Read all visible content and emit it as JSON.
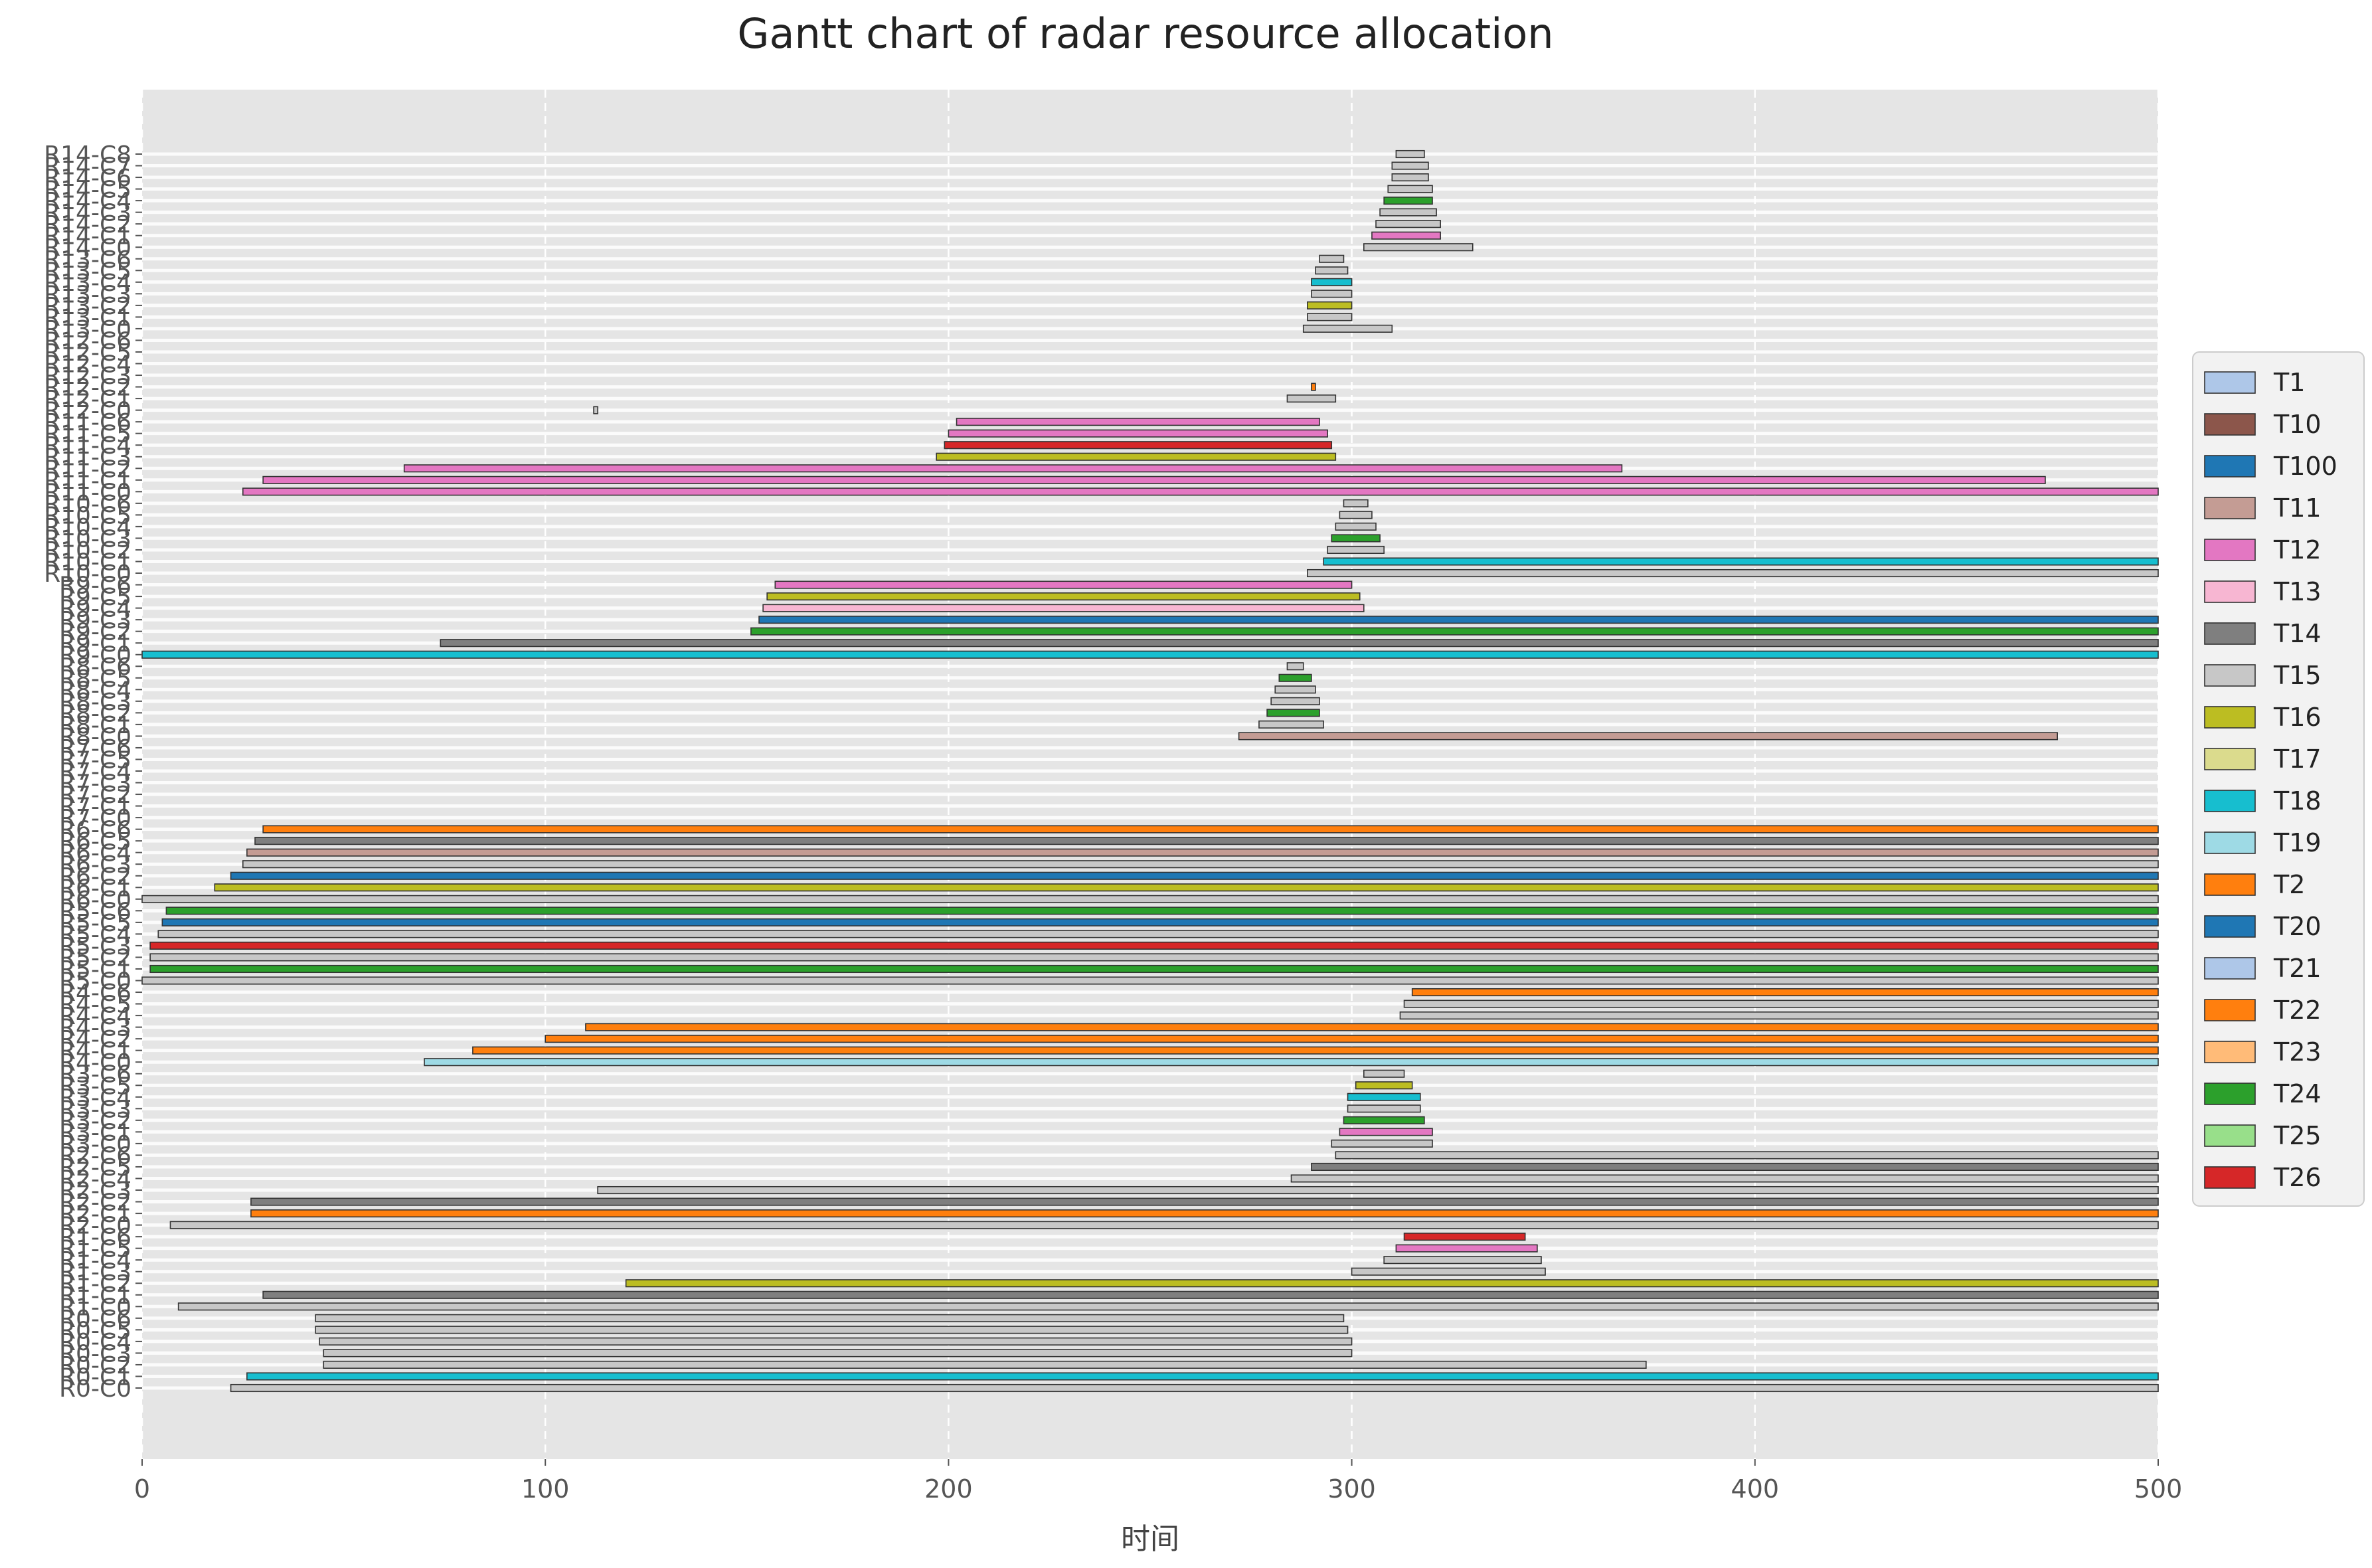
{
  "chart_data": {
    "type": "gantt",
    "title": "Gantt chart of radar resource allocation",
    "xlabel": "时间",
    "ylabel": "",
    "xlim": [
      0,
      500
    ],
    "xticks": [
      0,
      100,
      200,
      300,
      400,
      500
    ],
    "grid": true,
    "legend_placement": "right",
    "rows": [
      "R0-C0",
      "R0-C1",
      "R0-C2",
      "R0-C3",
      "R0-C4",
      "R0-C5",
      "R0-C6",
      "R1-C0",
      "R1-C1",
      "R1-C2",
      "R1-C3",
      "R1-C4",
      "R1-C5",
      "R1-C6",
      "R2-C0",
      "R2-C1",
      "R2-C2",
      "R2-C3",
      "R2-C4",
      "R2-C5",
      "R2-C6",
      "R3-C0",
      "R3-C1",
      "R3-C2",
      "R3-C3",
      "R3-C4",
      "R3-C5",
      "R3-C6",
      "R4-C0",
      "R4-C1",
      "R4-C2",
      "R4-C3",
      "R4-C4",
      "R4-C5",
      "R4-C6",
      "R5-C0",
      "R5-C1",
      "R5-C2",
      "R5-C3",
      "R5-C4",
      "R5-C5",
      "R5-C6",
      "R6-C0",
      "R6-C1",
      "R6-C2",
      "R6-C3",
      "R6-C4",
      "R6-C5",
      "R6-C6",
      "R7-C0",
      "R7-C1",
      "R7-C2",
      "R7-C3",
      "R7-C4",
      "R7-C5",
      "R7-C6",
      "R8-C0",
      "R8-C1",
      "R8-C2",
      "R8-C3",
      "R8-C4",
      "R8-C5",
      "R8-C6",
      "R9-C0",
      "R9-C1",
      "R9-C2",
      "R9-C3",
      "R9-C4",
      "R9-C5",
      "R9-C6",
      "R10-C0",
      "R10-C1",
      "R10-C2",
      "R10-C3",
      "R10-C4",
      "R10-C5",
      "R10-C6",
      "R11-C0",
      "R11-C1",
      "R11-C2",
      "R11-C3",
      "R11-C4",
      "R11-C5",
      "R11-C6",
      "R12-C0",
      "R12-C1",
      "R12-C2",
      "R12-C3",
      "R12-C4",
      "R12-C5",
      "R12-C6",
      "R13-C0",
      "R13-C1",
      "R13-C2",
      "R13-C3",
      "R13-C4",
      "R13-C5",
      "R13-C6",
      "R14-C0",
      "R14-C1",
      "R14-C2",
      "R14-C3",
      "R14-C4",
      "R14-C5",
      "R14-C6",
      "R14-C7",
      "R14-C8"
    ],
    "legend": [
      {
        "name": "T1",
        "color": "#aec7e8"
      },
      {
        "name": "T10",
        "color": "#8c564b"
      },
      {
        "name": "T100",
        "color": "#1f77b4"
      },
      {
        "name": "T11",
        "color": "#c49c94"
      },
      {
        "name": "T12",
        "color": "#e377c2"
      },
      {
        "name": "T13",
        "color": "#f7b6d2"
      },
      {
        "name": "T14",
        "color": "#7f7f7f"
      },
      {
        "name": "T15",
        "color": "#c7c7c7"
      },
      {
        "name": "T16",
        "color": "#bcbd22"
      },
      {
        "name": "T17",
        "color": "#dbdb8d"
      },
      {
        "name": "T18",
        "color": "#17becf"
      },
      {
        "name": "T19",
        "color": "#9edae5"
      },
      {
        "name": "T2",
        "color": "#ff7f0e"
      },
      {
        "name": "T20",
        "color": "#1f77b4"
      },
      {
        "name": "T21",
        "color": "#aec7e8"
      },
      {
        "name": "T22",
        "color": "#ff7f0e"
      },
      {
        "name": "T23",
        "color": "#ffbb78"
      },
      {
        "name": "T24",
        "color": "#2ca02c"
      },
      {
        "name": "T25",
        "color": "#98df8a"
      },
      {
        "name": "T26",
        "color": "#d62728"
      }
    ],
    "segments": [
      {
        "row": "R0-C0",
        "start": 22,
        "end": 500,
        "task": "T15"
      },
      {
        "row": "R0-C1",
        "start": 26,
        "end": 500,
        "task": "T18"
      },
      {
        "row": "R0-C2",
        "start": 45,
        "end": 373,
        "task": "T15"
      },
      {
        "row": "R0-C3",
        "start": 45,
        "end": 300,
        "task": "T15"
      },
      {
        "row": "R0-C4",
        "start": 44,
        "end": 300,
        "task": "T15"
      },
      {
        "row": "R0-C5",
        "start": 43,
        "end": 299,
        "task": "T15"
      },
      {
        "row": "R0-C6",
        "start": 43,
        "end": 298,
        "task": "T15"
      },
      {
        "row": "R1-C0",
        "start": 9,
        "end": 500,
        "task": "T15"
      },
      {
        "row": "R1-C1",
        "start": 30,
        "end": 500,
        "task": "T14"
      },
      {
        "row": "R1-C2",
        "start": 120,
        "end": 500,
        "task": "T16"
      },
      {
        "row": "R1-C3",
        "start": 300,
        "end": 348,
        "task": "T15"
      },
      {
        "row": "R1-C4",
        "start": 308,
        "end": 347,
        "task": "T15"
      },
      {
        "row": "R1-C5",
        "start": 311,
        "end": 346,
        "task": "T12"
      },
      {
        "row": "R1-C6",
        "start": 313,
        "end": 343,
        "task": "T26"
      },
      {
        "row": "R2-C0",
        "start": 7,
        "end": 500,
        "task": "T15"
      },
      {
        "row": "R2-C1",
        "start": 27,
        "end": 500,
        "task": "T2"
      },
      {
        "row": "R2-C2",
        "start": 27,
        "end": 500,
        "task": "T14"
      },
      {
        "row": "R2-C3",
        "start": 113,
        "end": 500,
        "task": "T15"
      },
      {
        "row": "R2-C4",
        "start": 285,
        "end": 500,
        "task": "T15"
      },
      {
        "row": "R2-C5",
        "start": 290,
        "end": 500,
        "task": "T14"
      },
      {
        "row": "R2-C6",
        "start": 296,
        "end": 500,
        "task": "T15"
      },
      {
        "row": "R3-C0",
        "start": 295,
        "end": 320,
        "task": "T15"
      },
      {
        "row": "R3-C1",
        "start": 297,
        "end": 320,
        "task": "T12"
      },
      {
        "row": "R3-C2",
        "start": 298,
        "end": 318,
        "task": "T24"
      },
      {
        "row": "R3-C3",
        "start": 299,
        "end": 317,
        "task": "T15"
      },
      {
        "row": "R3-C4",
        "start": 299,
        "end": 317,
        "task": "T18"
      },
      {
        "row": "R3-C5",
        "start": 301,
        "end": 315,
        "task": "T16"
      },
      {
        "row": "R3-C6",
        "start": 303,
        "end": 313,
        "task": "T15"
      },
      {
        "row": "R4-C0",
        "start": 70,
        "end": 500,
        "task": "T19"
      },
      {
        "row": "R4-C1",
        "start": 82,
        "end": 500,
        "task": "T22"
      },
      {
        "row": "R4-C2",
        "start": 100,
        "end": 500,
        "task": "T2"
      },
      {
        "row": "R4-C3",
        "start": 110,
        "end": 500,
        "task": "T22"
      },
      {
        "row": "R4-C4",
        "start": 312,
        "end": 500,
        "task": "T15"
      },
      {
        "row": "R4-C5",
        "start": 313,
        "end": 500,
        "task": "T15"
      },
      {
        "row": "R4-C6",
        "start": 315,
        "end": 500,
        "task": "T22"
      },
      {
        "row": "R5-C0",
        "start": 0,
        "end": 500,
        "task": "T15"
      },
      {
        "row": "R5-C1",
        "start": 2,
        "end": 500,
        "task": "T24"
      },
      {
        "row": "R5-C2",
        "start": 2,
        "end": 500,
        "task": "T15"
      },
      {
        "row": "R5-C3",
        "start": 2,
        "end": 500,
        "task": "T26"
      },
      {
        "row": "R5-C4",
        "start": 4,
        "end": 500,
        "task": "T15"
      },
      {
        "row": "R5-C5",
        "start": 5,
        "end": 500,
        "task": "T20"
      },
      {
        "row": "R5-C6",
        "start": 6,
        "end": 500,
        "task": "T24"
      },
      {
        "row": "R6-C0",
        "start": 0,
        "end": 500,
        "task": "T15"
      },
      {
        "row": "R6-C1",
        "start": 18,
        "end": 500,
        "task": "T16"
      },
      {
        "row": "R6-C2",
        "start": 22,
        "end": 500,
        "task": "T20"
      },
      {
        "row": "R6-C3",
        "start": 25,
        "end": 500,
        "task": "T15"
      },
      {
        "row": "R6-C4",
        "start": 26,
        "end": 500,
        "task": "T11"
      },
      {
        "row": "R6-C5",
        "start": 28,
        "end": 500,
        "task": "T14"
      },
      {
        "row": "R6-C6",
        "start": 30,
        "end": 500,
        "task": "T22"
      },
      {
        "row": "R8-C0",
        "start": 272,
        "end": 475,
        "task": "T11"
      },
      {
        "row": "R8-C1",
        "start": 277,
        "end": 293,
        "task": "T15"
      },
      {
        "row": "R8-C2",
        "start": 279,
        "end": 292,
        "task": "T24"
      },
      {
        "row": "R8-C3",
        "start": 280,
        "end": 292,
        "task": "T15"
      },
      {
        "row": "R8-C4",
        "start": 281,
        "end": 291,
        "task": "T15"
      },
      {
        "row": "R8-C5",
        "start": 282,
        "end": 290,
        "task": "T24"
      },
      {
        "row": "R8-C6",
        "start": 284,
        "end": 288,
        "task": "T15"
      },
      {
        "row": "R9-C0",
        "start": 0,
        "end": 500,
        "task": "T18"
      },
      {
        "row": "R9-C1",
        "start": 74,
        "end": 500,
        "task": "T14"
      },
      {
        "row": "R9-C2",
        "start": 151,
        "end": 500,
        "task": "T24"
      },
      {
        "row": "R9-C3",
        "start": 153,
        "end": 500,
        "task": "T20"
      },
      {
        "row": "R9-C4",
        "start": 154,
        "end": 303,
        "task": "T13"
      },
      {
        "row": "R9-C5",
        "start": 155,
        "end": 302,
        "task": "T16"
      },
      {
        "row": "R9-C6",
        "start": 157,
        "end": 300,
        "task": "T12"
      },
      {
        "row": "R10-C0",
        "start": 289,
        "end": 500,
        "task": "T15"
      },
      {
        "row": "R10-C1",
        "start": 293,
        "end": 500,
        "task": "T18"
      },
      {
        "row": "R10-C2",
        "start": 294,
        "end": 308,
        "task": "T15"
      },
      {
        "row": "R10-C3",
        "start": 295,
        "end": 307,
        "task": "T24"
      },
      {
        "row": "R10-C4",
        "start": 296,
        "end": 306,
        "task": "T15"
      },
      {
        "row": "R10-C5",
        "start": 297,
        "end": 305,
        "task": "T15"
      },
      {
        "row": "R10-C6",
        "start": 298,
        "end": 304,
        "task": "T15"
      },
      {
        "row": "R11-C0",
        "start": 25,
        "end": 500,
        "task": "T12"
      },
      {
        "row": "R11-C1",
        "start": 30,
        "end": 472,
        "task": "T12"
      },
      {
        "row": "R11-C2",
        "start": 65,
        "end": 367,
        "task": "T12"
      },
      {
        "row": "R11-C3",
        "start": 197,
        "end": 296,
        "task": "T16"
      },
      {
        "row": "R11-C4",
        "start": 199,
        "end": 295,
        "task": "T26"
      },
      {
        "row": "R11-C5",
        "start": 200,
        "end": 294,
        "task": "T12"
      },
      {
        "row": "R11-C6",
        "start": 202,
        "end": 292,
        "task": "T12"
      },
      {
        "row": "R12-C0",
        "start": 112,
        "end": 113,
        "task": "T15"
      },
      {
        "row": "R12-C1",
        "start": 284,
        "end": 296,
        "task": "T15"
      },
      {
        "row": "R12-C2",
        "start": 290,
        "end": 291,
        "task": "T22"
      },
      {
        "row": "R13-C0",
        "start": 288,
        "end": 310,
        "task": "T15"
      },
      {
        "row": "R13-C1",
        "start": 289,
        "end": 300,
        "task": "T15"
      },
      {
        "row": "R13-C2",
        "start": 289,
        "end": 300,
        "task": "T16"
      },
      {
        "row": "R13-C3",
        "start": 290,
        "end": 300,
        "task": "T15"
      },
      {
        "row": "R13-C4",
        "start": 290,
        "end": 300,
        "task": "T18"
      },
      {
        "row": "R13-C5",
        "start": 291,
        "end": 299,
        "task": "T15"
      },
      {
        "row": "R13-C6",
        "start": 292,
        "end": 298,
        "task": "T15"
      },
      {
        "row": "R14-C0",
        "start": 303,
        "end": 330,
        "task": "T15"
      },
      {
        "row": "R14-C1",
        "start": 305,
        "end": 322,
        "task": "T12"
      },
      {
        "row": "R14-C2",
        "start": 306,
        "end": 322,
        "task": "T15"
      },
      {
        "row": "R14-C3",
        "start": 307,
        "end": 321,
        "task": "T15"
      },
      {
        "row": "R14-C4",
        "start": 308,
        "end": 320,
        "task": "T24"
      },
      {
        "row": "R14-C5",
        "start": 309,
        "end": 320,
        "task": "T15"
      },
      {
        "row": "R14-C6",
        "start": 310,
        "end": 319,
        "task": "T15"
      },
      {
        "row": "R14-C7",
        "start": 310,
        "end": 319,
        "task": "T15"
      },
      {
        "row": "R14-C8",
        "start": 311,
        "end": 318,
        "task": "T15"
      }
    ]
  }
}
